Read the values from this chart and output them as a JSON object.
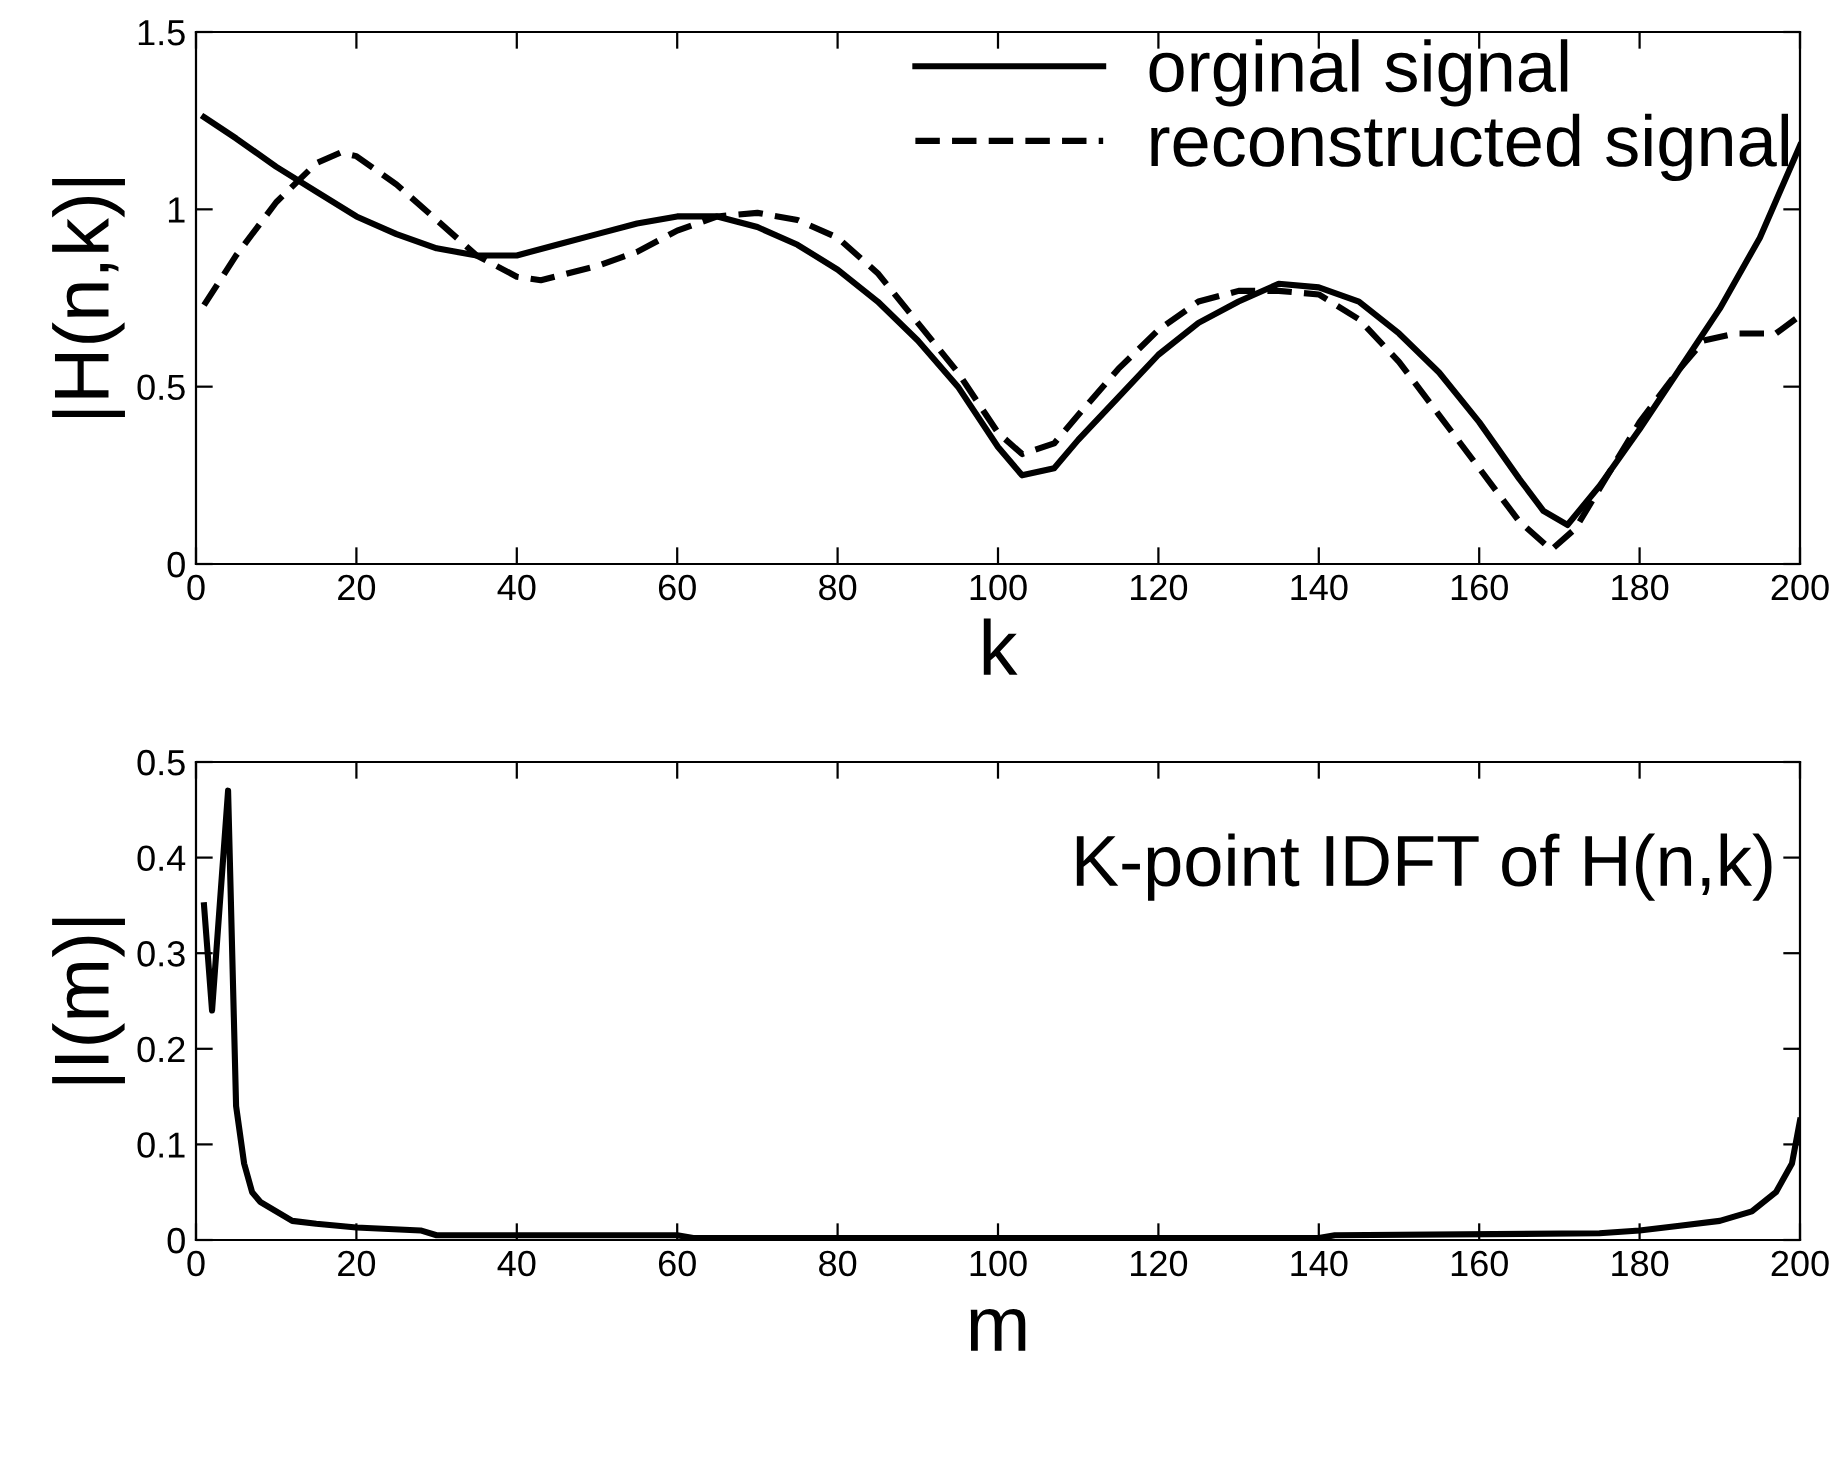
{
  "chart_data": [
    {
      "type": "line",
      "xlabel": "k",
      "ylabel": "|H(n,k)|",
      "xlim": [
        0,
        200
      ],
      "ylim": [
        0,
        1.5
      ],
      "xticks": [
        0,
        20,
        40,
        60,
        80,
        100,
        120,
        140,
        160,
        180,
        200
      ],
      "yticks": [
        0,
        0.5,
        1,
        1.5
      ],
      "legend": "top right",
      "grid": false,
      "series": [
        {
          "name": "orginal signal",
          "color": "#000000",
          "line_style": "solid",
          "x": [
            1,
            5,
            10,
            15,
            20,
            25,
            30,
            35,
            40,
            45,
            50,
            55,
            60,
            65,
            70,
            75,
            80,
            85,
            90,
            95,
            100,
            103,
            107,
            110,
            115,
            120,
            125,
            130,
            135,
            140,
            145,
            150,
            155,
            160,
            165,
            168,
            171,
            175,
            180,
            185,
            190,
            195,
            200
          ],
          "values": [
            1.26,
            1.2,
            1.12,
            1.05,
            0.98,
            0.93,
            0.89,
            0.87,
            0.87,
            0.9,
            0.93,
            0.96,
            0.98,
            0.98,
            0.95,
            0.9,
            0.83,
            0.74,
            0.63,
            0.5,
            0.33,
            0.25,
            0.27,
            0.35,
            0.47,
            0.59,
            0.68,
            0.74,
            0.79,
            0.78,
            0.74,
            0.65,
            0.54,
            0.4,
            0.24,
            0.15,
            0.11,
            0.22,
            0.38,
            0.55,
            0.72,
            0.92,
            1.18
          ]
        },
        {
          "name": "reconstructed signal",
          "color": "#000000",
          "line_style": "dashed",
          "x": [
            1,
            5,
            10,
            15,
            18,
            20,
            25,
            30,
            35,
            40,
            43,
            50,
            55,
            60,
            65,
            70,
            75,
            80,
            85,
            90,
            95,
            100,
            103,
            107,
            110,
            115,
            120,
            125,
            130,
            135,
            140,
            145,
            150,
            155,
            160,
            165,
            169,
            172,
            176,
            180,
            185,
            188,
            192,
            197,
            200
          ],
          "values": [
            0.73,
            0.87,
            1.02,
            1.13,
            1.16,
            1.15,
            1.07,
            0.97,
            0.87,
            0.81,
            0.8,
            0.84,
            0.88,
            0.94,
            0.98,
            0.99,
            0.97,
            0.92,
            0.82,
            0.68,
            0.54,
            0.37,
            0.31,
            0.34,
            0.42,
            0.55,
            0.66,
            0.74,
            0.77,
            0.77,
            0.76,
            0.69,
            0.57,
            0.42,
            0.27,
            0.12,
            0.04,
            0.1,
            0.25,
            0.4,
            0.55,
            0.63,
            0.65,
            0.65,
            0.7
          ]
        }
      ]
    },
    {
      "type": "line",
      "xlabel": "m",
      "ylabel": "|I(m)|",
      "xlim": [
        0,
        200
      ],
      "ylim": [
        0,
        0.5
      ],
      "xticks": [
        0,
        20,
        40,
        60,
        80,
        100,
        120,
        140,
        160,
        180,
        200
      ],
      "yticks": [
        0,
        0.1,
        0.2,
        0.3,
        0.4,
        0.5
      ],
      "grid": false,
      "annotations": [
        "K-point IDFT of H(n,k)"
      ],
      "series": [
        {
          "color": "#000000",
          "line_style": "solid",
          "x": [
            1,
            2,
            4,
            5,
            6,
            7,
            8,
            10,
            12,
            15,
            20,
            28,
            30,
            60,
            62,
            140,
            142,
            175,
            180,
            185,
            190,
            194,
            197,
            199,
            200
          ],
          "values": [
            0.35,
            0.24,
            0.47,
            0.14,
            0.08,
            0.05,
            0.04,
            0.03,
            0.02,
            0.017,
            0.013,
            0.01,
            0.005,
            0.005,
            0.002,
            0.002,
            0.005,
            0.007,
            0.01,
            0.015,
            0.02,
            0.03,
            0.05,
            0.08,
            0.125
          ]
        }
      ]
    }
  ]
}
